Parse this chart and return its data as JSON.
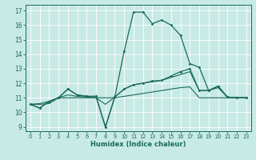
{
  "xlabel": "Humidex (Indice chaleur)",
  "bg_color": "#c8eae5",
  "line_color": "#1a6b5a",
  "xlim": [
    -0.5,
    23.5
  ],
  "ylim": [
    8.7,
    17.4
  ],
  "xticks": [
    0,
    1,
    2,
    3,
    4,
    5,
    6,
    7,
    8,
    9,
    10,
    11,
    12,
    13,
    14,
    15,
    16,
    17,
    18,
    19,
    20,
    21,
    22,
    23
  ],
  "yticks": [
    9,
    10,
    11,
    12,
    13,
    14,
    15,
    16,
    17
  ],
  "series": [
    {
      "y": [
        10.55,
        10.3,
        10.75,
        11.0,
        11.6,
        11.2,
        11.1,
        11.1,
        9.0,
        11.05,
        11.6,
        11.9,
        12.0,
        12.15,
        12.2,
        12.5,
        12.8,
        13.0,
        11.5,
        11.5,
        11.8,
        11.05,
        11.0,
        11.0
      ],
      "marker": true,
      "lw": 0.9
    },
    {
      "y": [
        10.55,
        10.3,
        10.75,
        11.0,
        11.6,
        11.2,
        11.1,
        11.1,
        9.0,
        11.05,
        14.2,
        16.9,
        16.9,
        16.1,
        16.35,
        16.0,
        15.3,
        13.35,
        13.1,
        11.5,
        11.8,
        11.05,
        11.0,
        11.0
      ],
      "marker": true,
      "lw": 0.9
    },
    {
      "y": [
        10.55,
        10.6,
        10.75,
        11.0,
        11.2,
        11.1,
        11.05,
        11.0,
        10.55,
        11.05,
        11.6,
        11.9,
        12.0,
        12.1,
        12.2,
        12.4,
        12.6,
        12.8,
        11.5,
        11.5,
        11.7,
        11.05,
        11.0,
        11.0
      ],
      "marker": false,
      "lw": 0.8
    },
    {
      "y": [
        10.55,
        10.55,
        10.6,
        11.0,
        11.0,
        11.0,
        11.0,
        11.0,
        11.0,
        11.0,
        11.1,
        11.2,
        11.3,
        11.4,
        11.5,
        11.6,
        11.7,
        11.75,
        11.0,
        11.0,
        11.0,
        11.0,
        11.0,
        11.0
      ],
      "marker": false,
      "lw": 0.8
    }
  ]
}
